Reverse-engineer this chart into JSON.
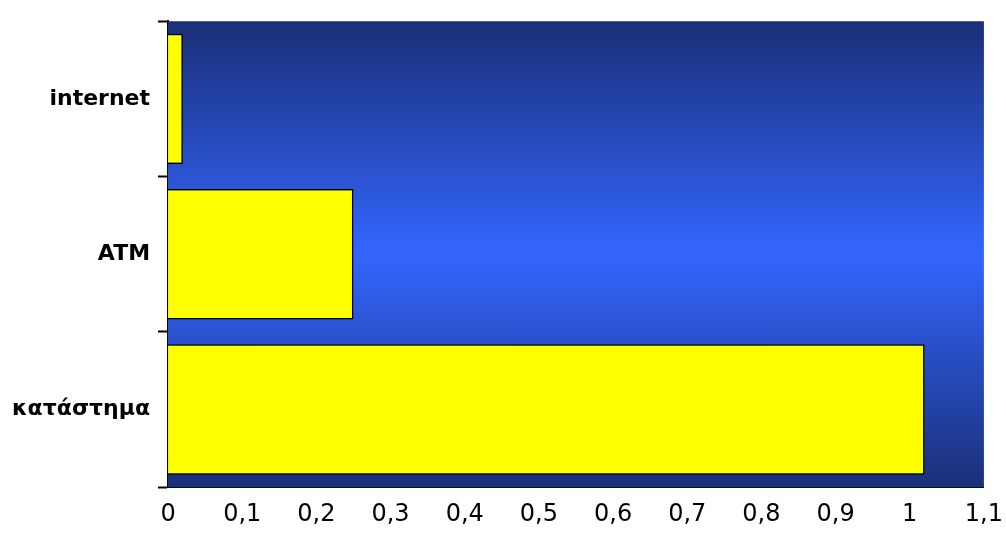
{
  "chart_data": {
    "type": "bar",
    "orientation": "horizontal",
    "categories": [
      "internet",
      "ATM",
      "κατάστημα"
    ],
    "values": [
      0.02,
      0.25,
      1.02
    ],
    "color": "#ffff00",
    "xlim": [
      0,
      1.1
    ],
    "xticks": [
      {
        "value": 0,
        "label": "0"
      },
      {
        "value": 0.1,
        "label": "0,1"
      },
      {
        "value": 0.2,
        "label": "0,2"
      },
      {
        "value": 0.3,
        "label": "0,3"
      },
      {
        "value": 0.4,
        "label": "0,4"
      },
      {
        "value": 0.5,
        "label": "0,5"
      },
      {
        "value": 0.6,
        "label": "0,6"
      },
      {
        "value": 0.7,
        "label": "0,7"
      },
      {
        "value": 0.8,
        "label": "0,8"
      },
      {
        "value": 0.9,
        "label": "0,9"
      },
      {
        "value": 1,
        "label": "1"
      },
      {
        "value": 1.1,
        "label": "1,1"
      }
    ],
    "grid": false,
    "legend": false
  }
}
